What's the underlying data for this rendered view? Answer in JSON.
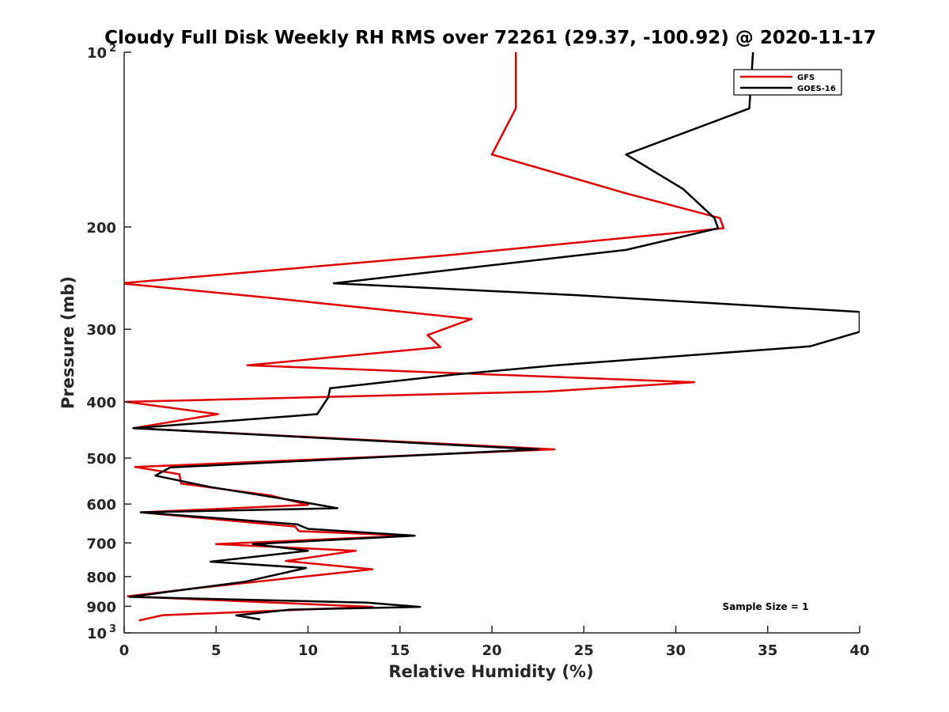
{
  "chart_data": {
    "type": "line",
    "title": "Cloudy Full Disk Weekly RH RMS over 72261 (29.37, -100.92) @ 2020-11-17",
    "xlabel": "Relative Humidity (%)",
    "ylabel": "Pressure (mb)",
    "xlim": [
      0,
      40
    ],
    "ylim": [
      100,
      1000
    ],
    "y_scale": "log",
    "y_reversed": true,
    "grid": false,
    "legend_position": "top-right",
    "x_ticks": [
      "0",
      "5",
      "10",
      "15",
      "20",
      "25",
      "30",
      "35",
      "40"
    ],
    "y_ticks": [
      {
        "value": 100,
        "label": "10",
        "sup": "2"
      },
      {
        "value": 200,
        "label": "200",
        "sup": ""
      },
      {
        "value": 300,
        "label": "300",
        "sup": ""
      },
      {
        "value": 400,
        "label": "400",
        "sup": ""
      },
      {
        "value": 500,
        "label": "500",
        "sup": ""
      },
      {
        "value": 600,
        "label": "600",
        "sup": ""
      },
      {
        "value": 700,
        "label": "700",
        "sup": ""
      },
      {
        "value": 800,
        "label": "800",
        "sup": ""
      },
      {
        "value": 900,
        "label": "900",
        "sup": ""
      },
      {
        "value": 1000,
        "label": "10",
        "sup": "3"
      }
    ],
    "series": [
      {
        "name": "GFS",
        "color": "#e00000",
        "points": [
          [
            21.3,
            100
          ],
          [
            21.3,
            125
          ],
          [
            20.0,
            150
          ],
          [
            27.3,
            175
          ],
          [
            32.4,
            193
          ],
          [
            32.6,
            201
          ],
          [
            18.0,
            223
          ],
          [
            -0.2,
            250
          ],
          [
            7.5,
            264
          ],
          [
            18.9,
            288
          ],
          [
            16.5,
            307
          ],
          [
            17.2,
            322
          ],
          [
            6.7,
            346
          ],
          [
            31.0,
            370
          ],
          [
            23.0,
            384
          ],
          [
            0.1,
            400
          ],
          [
            5.1,
            420
          ],
          [
            0.5,
            444
          ],
          [
            23.4,
            483
          ],
          [
            0.6,
            518
          ],
          [
            3.0,
            533
          ],
          [
            3.1,
            553
          ],
          [
            8.0,
            580
          ],
          [
            10.0,
            602
          ],
          [
            0.9,
            620
          ],
          [
            9.3,
            656
          ],
          [
            9.5,
            668
          ],
          [
            15.5,
            680
          ],
          [
            5.0,
            703
          ],
          [
            12.6,
            722
          ],
          [
            8.8,
            752
          ],
          [
            13.5,
            777
          ],
          [
            4.0,
            837
          ],
          [
            0.2,
            865
          ],
          [
            13.5,
            902
          ],
          [
            2.1,
            932
          ],
          [
            0.8,
            952
          ]
        ]
      },
      {
        "name": "GOES-16",
        "color": "#000000",
        "points": [
          [
            34.2,
            100
          ],
          [
            34.0,
            125
          ],
          [
            27.3,
            150
          ],
          [
            30.4,
            172
          ],
          [
            32.1,
            193
          ],
          [
            32.3,
            201
          ],
          [
            27.3,
            219
          ],
          [
            11.4,
            250
          ],
          [
            24.5,
            262
          ],
          [
            40.0,
            280
          ],
          [
            40.0,
            303
          ],
          [
            37.3,
            321
          ],
          [
            23.5,
            346
          ],
          [
            18.0,
            359
          ],
          [
            11.2,
            379
          ],
          [
            11.1,
            393
          ],
          [
            10.5,
            420
          ],
          [
            0.5,
            444
          ],
          [
            22.5,
            483
          ],
          [
            2.5,
            519
          ],
          [
            1.7,
            536
          ],
          [
            4.7,
            561
          ],
          [
            9.7,
            595
          ],
          [
            11.6,
            610
          ],
          [
            0.9,
            620
          ],
          [
            9.4,
            650
          ],
          [
            10.0,
            662
          ],
          [
            15.8,
            680
          ],
          [
            7.0,
            703
          ],
          [
            10.0,
            722
          ],
          [
            4.7,
            754
          ],
          [
            9.9,
            773
          ],
          [
            6.6,
            816
          ],
          [
            0.3,
            867
          ],
          [
            13.2,
            887
          ],
          [
            16.1,
            902
          ],
          [
            9.0,
            912
          ],
          [
            6.1,
            933
          ],
          [
            7.4,
            948
          ]
        ]
      }
    ],
    "annotations": [
      "Sample Size = 1"
    ]
  }
}
